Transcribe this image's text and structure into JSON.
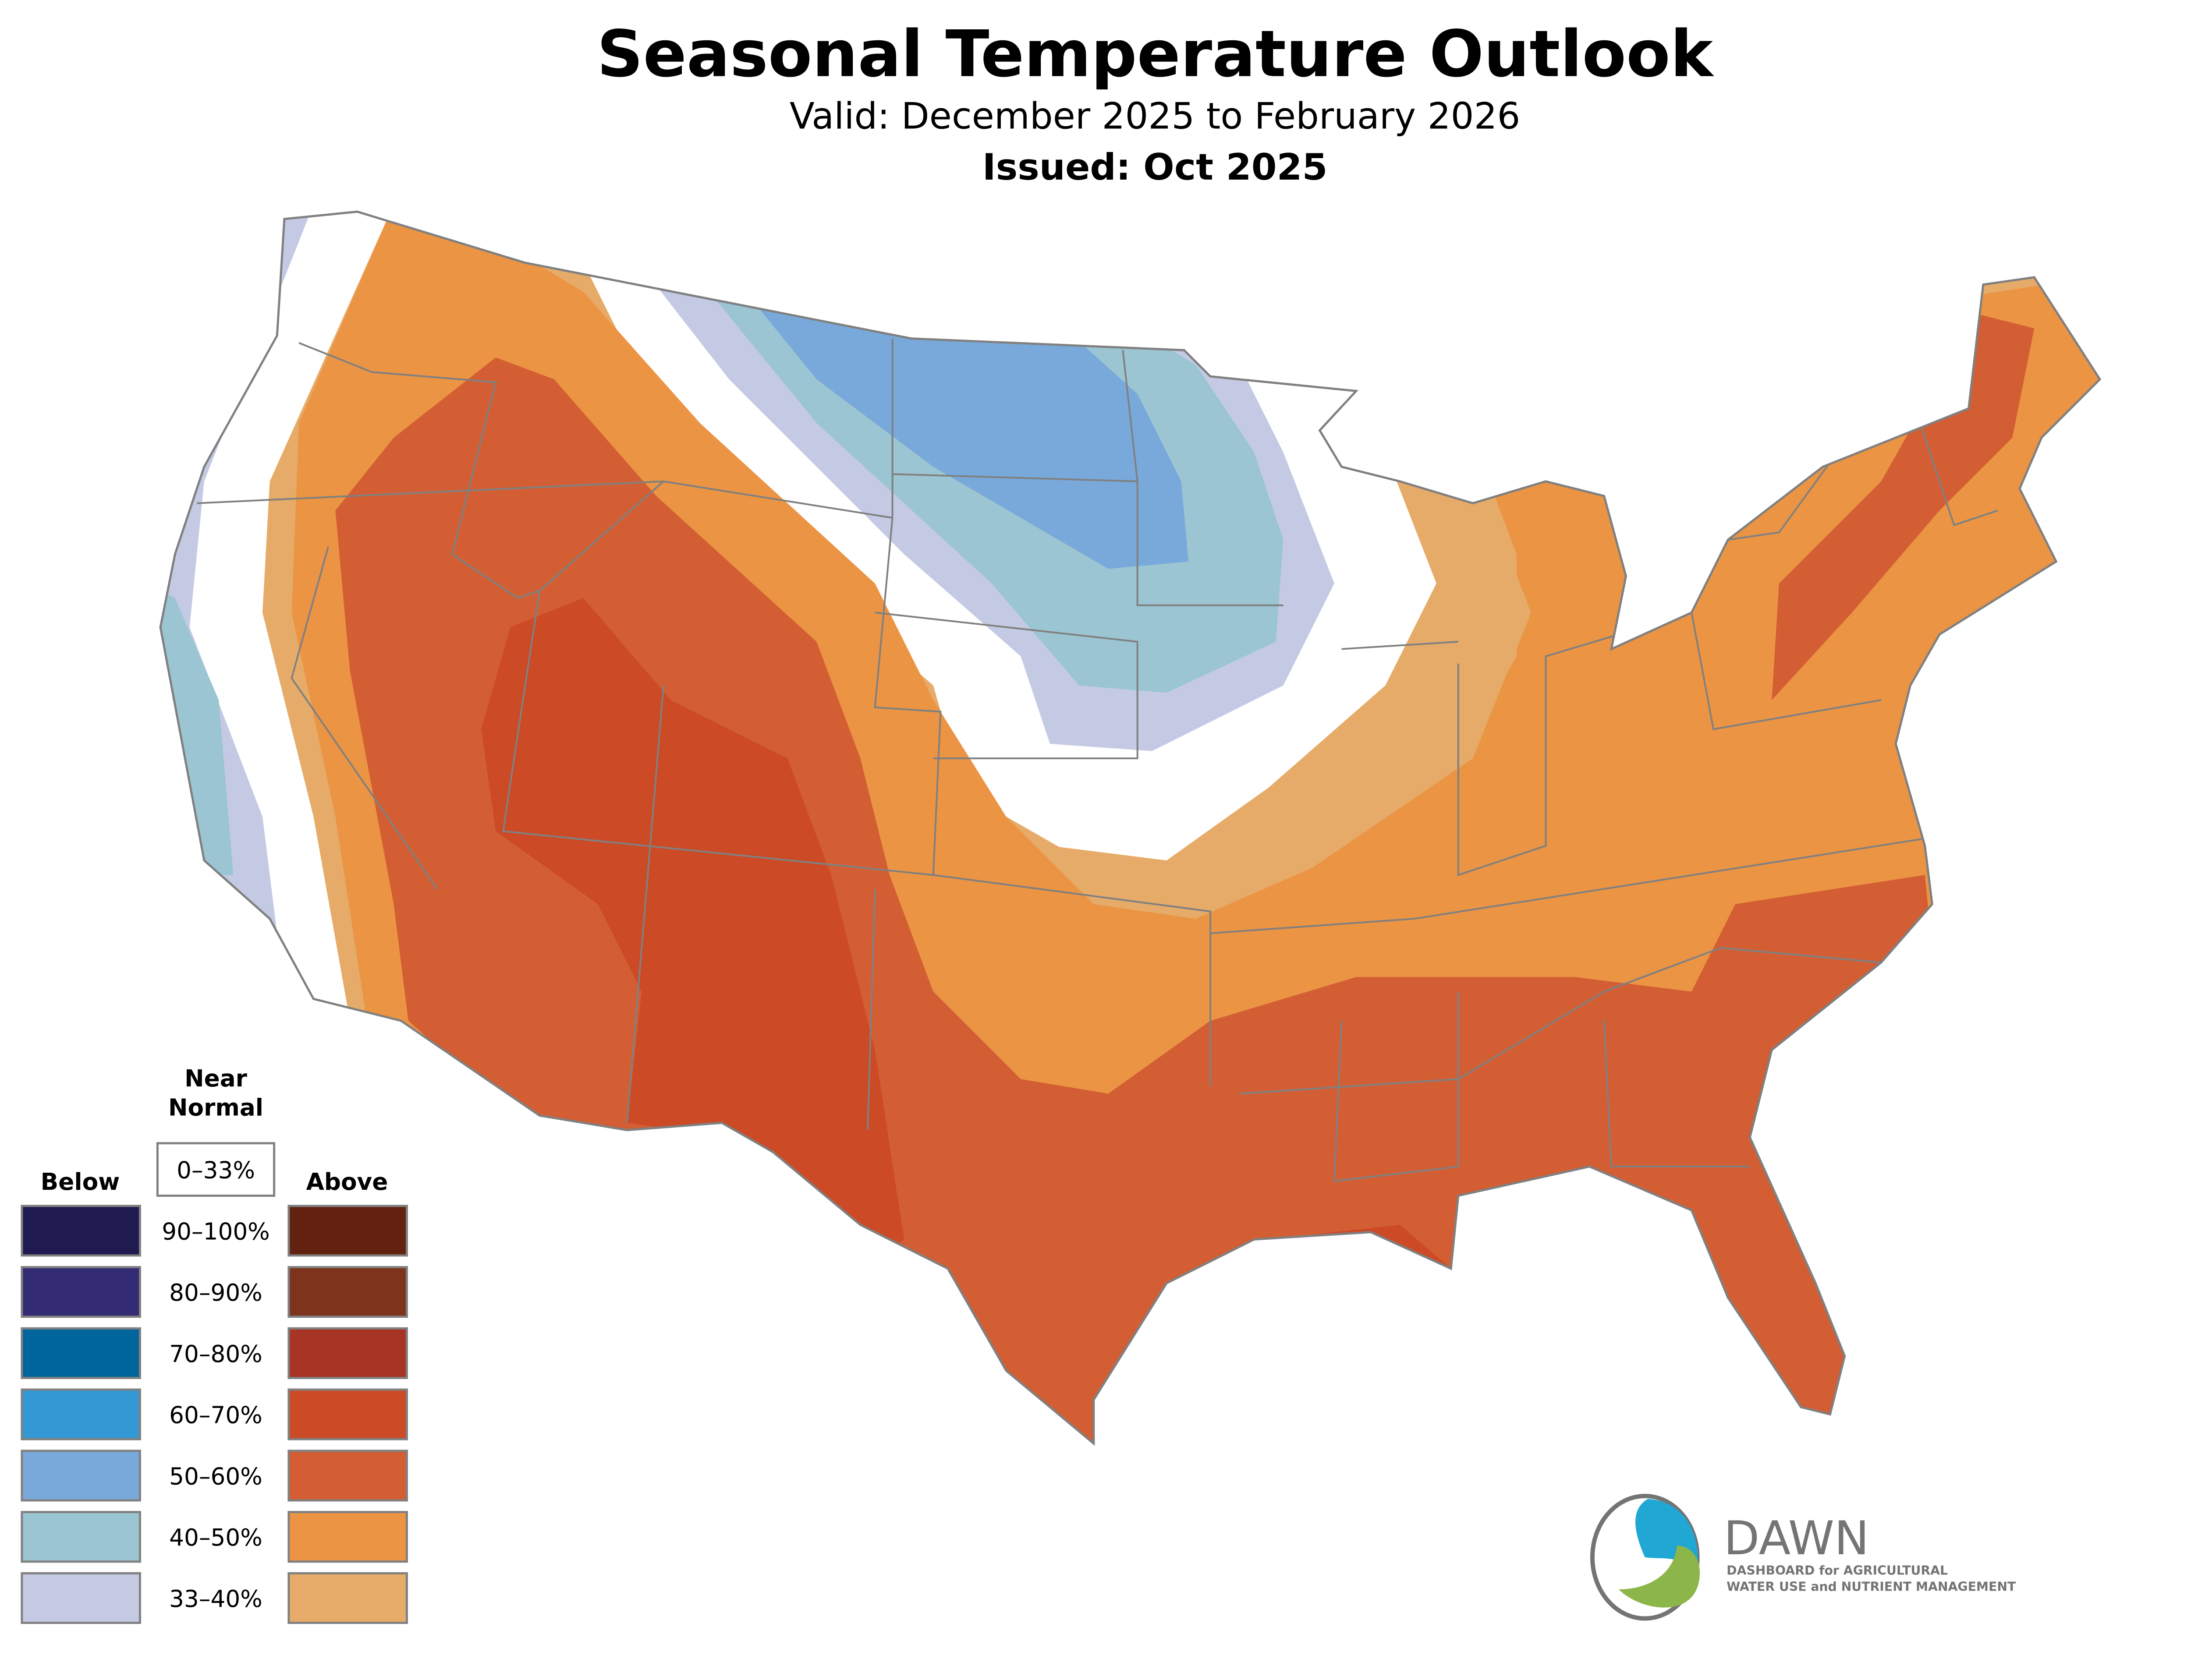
{
  "header": {
    "title": "Seasonal Temperature Outlook",
    "valid": "Valid: December 2025 to February 2026",
    "issued": "Issued: Oct 2025"
  },
  "legend": {
    "near_normal_line1": "Near",
    "near_normal_line2": "Normal",
    "near_normal_range": "0–33%",
    "below_label": "Below",
    "above_label": "Above",
    "rows": [
      {
        "range": "90–100%",
        "below_color": "#1f1a4f",
        "above_color": "#632210"
      },
      {
        "range": "80–90%",
        "below_color": "#332c74",
        "above_color": "#7e341c"
      },
      {
        "range": "70–80%",
        "below_color": "#00659d",
        "above_color": "#a73424"
      },
      {
        "range": "60–70%",
        "below_color": "#3399d4",
        "above_color": "#cc4a26"
      },
      {
        "range": "50–60%",
        "below_color": "#78a9da",
        "above_color": "#d35e33"
      },
      {
        "range": "40–50%",
        "below_color": "#9bc5d2",
        "above_color": "#eb9444"
      },
      {
        "range": "33–40%",
        "below_color": "#c4cae4",
        "above_color": "#e6ab68"
      }
    ]
  },
  "logo": {
    "name": "DAWN",
    "tagline_line1": "DASHBOARD for AGRICULTURAL",
    "tagline_line2": "WATER USE and NUTRIENT MANAGEMENT",
    "blue": "#20a7d3",
    "green": "#8db64a",
    "gray": "#737574"
  },
  "colors": {
    "border": "#808080"
  }
}
